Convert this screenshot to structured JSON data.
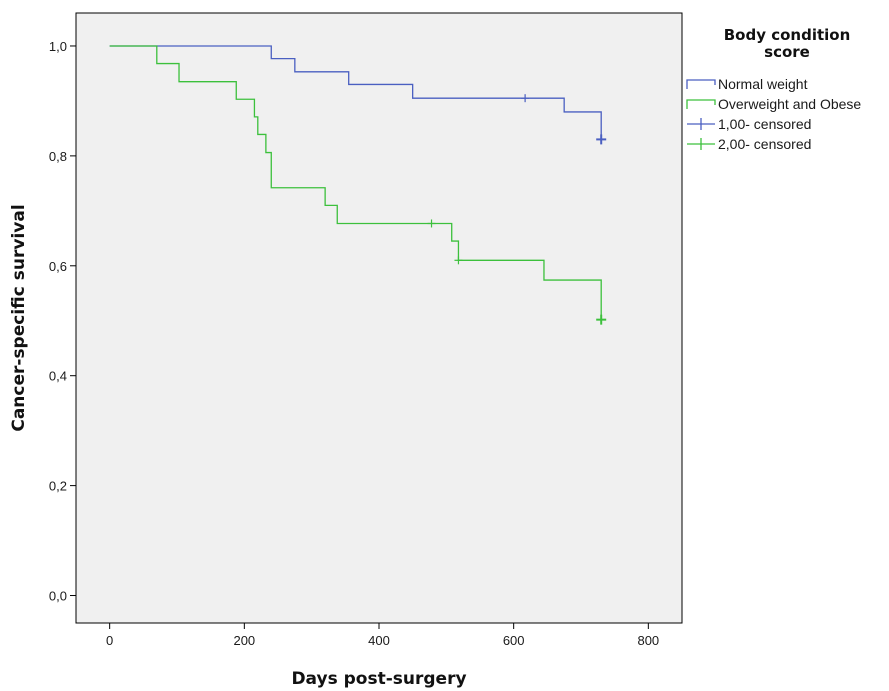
{
  "chart_data": {
    "type": "line",
    "subtype": "kaplan-meier-step",
    "xlabel": "Days post-surgery",
    "ylabel": "Cancer-specific survival",
    "xlim": [
      -50,
      850
    ],
    "ylim": [
      -0.05,
      1.06
    ],
    "xticks": [
      0,
      200,
      400,
      600,
      800
    ],
    "xtick_labels": [
      "0",
      "200",
      "400",
      "600",
      "800"
    ],
    "yticks": [
      0,
      0.2,
      0.4,
      0.6,
      0.8,
      1.0
    ],
    "ytick_labels": [
      "0,0",
      "0,2",
      "0,4",
      "0,6",
      "0,8",
      "1,0"
    ],
    "grid": false,
    "legend": {
      "title_lines": [
        "Body condition",
        "score"
      ],
      "position": "right",
      "entries": [
        {
          "label": "Normal weight",
          "kind": "step",
          "color": "#4a5fc1"
        },
        {
          "label": "Overweight and Obese",
          "kind": "step",
          "color": "#3cc03c"
        },
        {
          "label": "1,00- censored",
          "kind": "censor",
          "color": "#4a5fc1"
        },
        {
          "label": "2,00- censored",
          "kind": "censor",
          "color": "#3cc03c"
        }
      ]
    },
    "series": [
      {
        "name": "Normal weight",
        "color": "#4a5fc1",
        "steps": [
          [
            0,
            1.0
          ],
          [
            240,
            0.977
          ],
          [
            275,
            0.953
          ],
          [
            355,
            0.93
          ],
          [
            450,
            0.905
          ],
          [
            675,
            0.88
          ],
          [
            730,
            0.83
          ]
        ],
        "censored": [
          [
            617,
            0.905
          ],
          [
            730,
            0.83
          ]
        ]
      },
      {
        "name": "Overweight and Obese",
        "color": "#3cc03c",
        "steps": [
          [
            0,
            1.0
          ],
          [
            70,
            0.968
          ],
          [
            103,
            0.935
          ],
          [
            188,
            0.903
          ],
          [
            215,
            0.871
          ],
          [
            220,
            0.839
          ],
          [
            232,
            0.806
          ],
          [
            240,
            0.742
          ],
          [
            320,
            0.71
          ],
          [
            338,
            0.677
          ],
          [
            508,
            0.645
          ],
          [
            518,
            0.61
          ],
          [
            645,
            0.574
          ],
          [
            730,
            0.502
          ]
        ],
        "censored": [
          [
            478,
            0.677
          ],
          [
            518,
            0.61
          ],
          [
            730,
            0.502
          ]
        ]
      }
    ],
    "colors": {
      "plot_background": "#f0f0f0",
      "frame": "#000000"
    }
  }
}
